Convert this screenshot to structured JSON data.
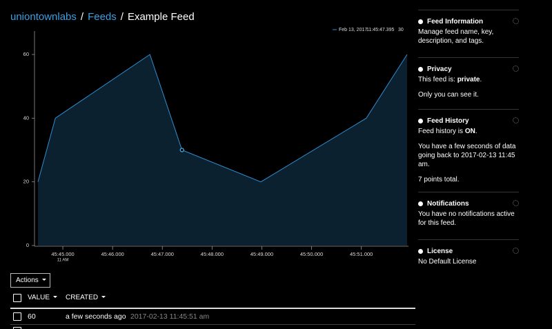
{
  "breadcrumb": [
    "uniontownlabs",
    "Feeds",
    "Example Feed"
  ],
  "chart_data": {
    "type": "area",
    "x": [
      44.5,
      44.85,
      46.75,
      47.395,
      48.98,
      51.1,
      51.92
    ],
    "values": [
      20,
      40,
      60,
      30,
      20,
      40,
      60
    ],
    "color": "#2f8fd0",
    "fill": "#0b2130",
    "xlim": [
      44.5,
      51.92
    ],
    "xticks": [
      {
        "value": 45,
        "label": "45:45.000"
      },
      {
        "value": 46,
        "label": "45:46.000"
      },
      {
        "value": 47,
        "label": "45:47.000"
      },
      {
        "value": 48,
        "label": "45:48.000"
      },
      {
        "value": 49,
        "label": "45:49.000"
      },
      {
        "value": 50,
        "label": "45:50.000"
      },
      {
        "value": 51,
        "label": "45:51.000"
      }
    ],
    "x_sublabel": "11 AM",
    "ylim": [
      0,
      60
    ],
    "yticks": [
      0,
      20,
      40,
      60
    ],
    "tooltip": {
      "date": "Feb 13, 2017",
      "time": "11:45:47.395",
      "value": 30
    }
  },
  "sidebar": [
    {
      "title": "Feed Information",
      "lines": [
        "Manage feed name, key, description, and tags."
      ]
    },
    {
      "title": "Privacy",
      "lines": [
        {
          "before": "This feed is: ",
          "bold": "private",
          "after": "."
        },
        "Only you can see it."
      ]
    },
    {
      "title": "Feed History",
      "lines": [
        {
          "before": "Feed history is ",
          "bold": "ON",
          "after": "."
        },
        "You have a few seconds of data going back to 2017-02-13 11:45 am.",
        "7 points total."
      ]
    },
    {
      "title": "Notifications",
      "lines": [
        "You have no notifications active for this feed."
      ]
    },
    {
      "title": "License",
      "lines": [
        "No Default License"
      ]
    }
  ],
  "table": {
    "actions": "Actions",
    "headers": [
      "VALUE",
      "CREATED"
    ],
    "rows": [
      [
        60,
        "a few seconds ago",
        "2017-02-13 11:45:51 am"
      ]
    ]
  }
}
